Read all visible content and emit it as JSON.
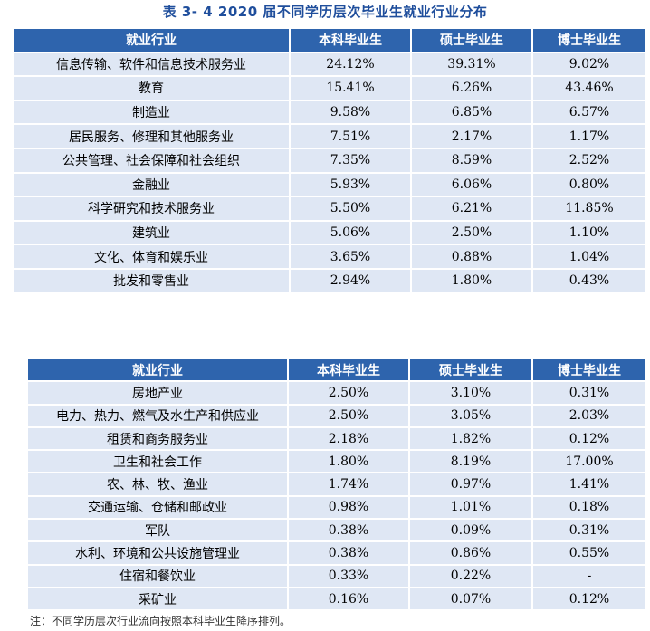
{
  "title": "表 3- 4    2020 届不同学历层次毕业生就业行业分布",
  "table1": {
    "headers": [
      "就业行业",
      "本科毕业生",
      "硕士毕业生",
      "博士毕业生"
    ],
    "rows": [
      [
        "信息传输、软件和信息技术服务业",
        "24.12%",
        "39.31%",
        "9.02%"
      ],
      [
        "教育",
        "15.41%",
        "6.26%",
        "43.46%"
      ],
      [
        "制造业",
        "9.58%",
        "6.85%",
        "6.57%"
      ],
      [
        "居民服务、修理和其他服务业",
        "7.51%",
        "2.17%",
        "1.17%"
      ],
      [
        "公共管理、社会保障和社会组织",
        "7.35%",
        "8.59%",
        "2.52%"
      ],
      [
        "金融业",
        "5.93%",
        "6.06%",
        "0.80%"
      ],
      [
        "科学研究和技术服务业",
        "5.50%",
        "6.21%",
        "11.85%"
      ],
      [
        "建筑业",
        "5.06%",
        "2.50%",
        "1.10%"
      ],
      [
        "文化、体育和娱乐业",
        "3.65%",
        "0.88%",
        "1.04%"
      ],
      [
        "批发和零售业",
        "2.94%",
        "1.80%",
        "0.43%"
      ]
    ]
  },
  "table2": {
    "headers": [
      "就业行业",
      "本科毕业生",
      "硕士毕业生",
      "博士毕业生"
    ],
    "rows": [
      [
        "房地产业",
        "2.50%",
        "3.10%",
        "0.31%"
      ],
      [
        "电力、热力、燃气及水生产和供应业",
        "2.50%",
        "3.05%",
        "2.03%"
      ],
      [
        "租赁和商务服务业",
        "2.18%",
        "1.82%",
        "0.12%"
      ],
      [
        "卫生和社会工作",
        "1.80%",
        "8.19%",
        "17.00%"
      ],
      [
        "农、林、牧、渔业",
        "1.74%",
        "0.97%",
        "1.41%"
      ],
      [
        "交通运输、仓储和邮政业",
        "0.98%",
        "1.01%",
        "0.18%"
      ],
      [
        "军队",
        "0.38%",
        "0.09%",
        "0.31%"
      ],
      [
        "水利、环境和公共设施管理业",
        "0.38%",
        "0.86%",
        "0.55%"
      ],
      [
        "住宿和餐饮业",
        "0.33%",
        "0.22%",
        "-"
      ],
      [
        "采矿业",
        "0.16%",
        "0.07%",
        "0.12%"
      ]
    ]
  },
  "note": "注：不同学历层次行业流向按照本科毕业生降序排列。"
}
